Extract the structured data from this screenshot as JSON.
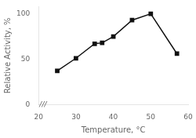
{
  "chart_data": {
    "type": "line",
    "x": [
      25,
      30,
      35,
      37,
      40,
      45,
      50,
      57
    ],
    "series": [
      {
        "name": "Relative Activity",
        "color": "#111111",
        "marker": "square",
        "values": [
          37,
          51,
          67,
          68,
          75,
          93,
          100,
          56
        ]
      }
    ],
    "xlabel": "Temperature, °C",
    "ylabel": "Relative Activity, %",
    "xlim": [
      20,
      60
    ],
    "xticks": [
      20,
      30,
      40,
      50,
      60
    ],
    "ylim": [
      0,
      108
    ],
    "yticks": [
      0,
      50,
      100
    ],
    "grid": false,
    "annotations": [
      {
        "text": "///",
        "x": 21.2
      }
    ]
  }
}
